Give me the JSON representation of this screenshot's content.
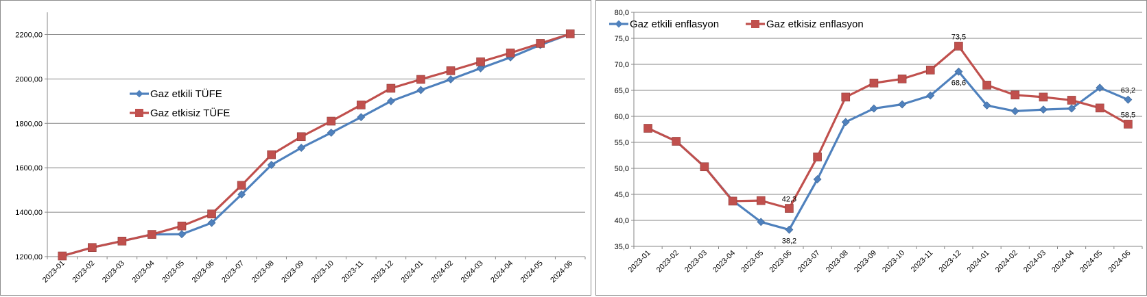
{
  "colors": {
    "gas": "#4f81bd",
    "nogas": "#c0504d",
    "grid": "#868686",
    "axis": "#868686"
  },
  "chart_data": [
    {
      "type": "line",
      "categories": [
        "2023-01",
        "2023-02",
        "2023-03",
        "2023-04",
        "2023-05",
        "2023-06",
        "2023-07",
        "2023-08",
        "2023-09",
        "2023-10",
        "2023-11",
        "2023-12",
        "2024-01",
        "2024-02",
        "2024-03",
        "2024-04",
        "2024-05",
        "2024-06"
      ],
      "ylim": [
        1200,
        2300
      ],
      "yticks": [
        1200,
        1400,
        1600,
        1800,
        2000,
        2200
      ],
      "ytick_labels": [
        "1200,00",
        "1400,00",
        "1600,00",
        "1800,00",
        "2000,00",
        "2200,00"
      ],
      "grid": true,
      "legend_position": "center-left",
      "series": [
        {
          "name": "Gaz etkili TÜFE",
          "marker": "diamond",
          "values": [
            1203,
            1241,
            1270,
            1300,
            1301,
            1352,
            1480,
            1613,
            1690,
            1758,
            1828,
            1900,
            1950,
            1998,
            2048,
            2097,
            2153,
            2203
          ]
        },
        {
          "name": "Gaz etkisiz TÜFE",
          "marker": "square",
          "values": [
            1203,
            1241,
            1270,
            1300,
            1338,
            1392,
            1521,
            1659,
            1740,
            1810,
            1883,
            1958,
            1998,
            2037,
            2077,
            2117,
            2160,
            2203
          ]
        }
      ]
    },
    {
      "type": "line",
      "categories": [
        "2023-01",
        "2023-02",
        "2023-03",
        "2023-04",
        "2023-05",
        "2023-06",
        "2023-07",
        "2023-08",
        "2023-09",
        "2023-10",
        "2023-11",
        "2023-12",
        "2024-01",
        "2024-02",
        "2024-03",
        "2024-04",
        "2024-05",
        "2024-06"
      ],
      "ylim": [
        35,
        80
      ],
      "yticks": [
        35,
        40,
        45,
        50,
        55,
        60,
        65,
        70,
        75,
        80
      ],
      "ytick_labels": [
        "35,0",
        "40,0",
        "45,0",
        "50,0",
        "55,0",
        "60,0",
        "65,0",
        "70,0",
        "75,0",
        "80,0"
      ],
      "grid": true,
      "legend_position": "top-left",
      "series": [
        {
          "name": "Gaz etkili enflasyon",
          "marker": "diamond",
          "values": [
            57.7,
            55.2,
            50.3,
            43.8,
            39.7,
            38.2,
            47.9,
            58.9,
            61.5,
            62.3,
            64.0,
            68.6,
            62.1,
            61.0,
            61.3,
            61.5,
            65.5,
            63.2
          ]
        },
        {
          "name": "Gaz etkisiz enflasyon",
          "marker": "square",
          "values": [
            57.7,
            55.2,
            50.3,
            43.7,
            43.8,
            42.3,
            52.2,
            63.7,
            66.4,
            67.2,
            68.9,
            73.5,
            66.0,
            64.1,
            63.7,
            63.1,
            61.6,
            58.5
          ]
        }
      ],
      "annotations": [
        {
          "text": "42,3",
          "series": 1,
          "index": 5,
          "place": "above"
        },
        {
          "text": "38,2",
          "series": 0,
          "index": 5,
          "place": "below"
        },
        {
          "text": "73,5",
          "series": 1,
          "index": 11,
          "place": "above"
        },
        {
          "text": "68,6",
          "series": 0,
          "index": 11,
          "place": "below"
        },
        {
          "text": "63,2",
          "series": 0,
          "index": 17,
          "place": "above"
        },
        {
          "text": "58,5",
          "series": 1,
          "index": 17,
          "place": "above"
        }
      ]
    }
  ]
}
